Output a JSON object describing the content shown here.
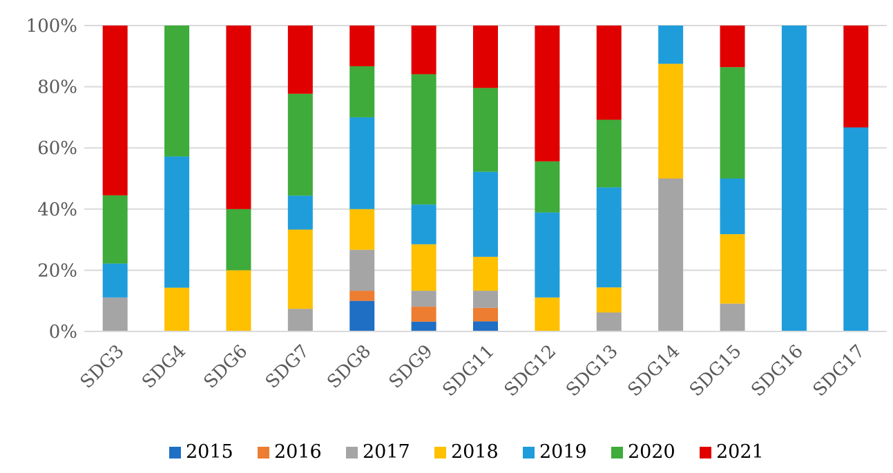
{
  "chart_data": {
    "type": "bar",
    "stacked": true,
    "percent": true,
    "title": "",
    "xlabel": "",
    "ylabel": "",
    "ylim": [
      0,
      100
    ],
    "y_ticks": [
      "0%",
      "20%",
      "40%",
      "60%",
      "80%",
      "100%"
    ],
    "y_tick_values": [
      0,
      20,
      40,
      60,
      80,
      100
    ],
    "grid": true,
    "legend_position": "bottom",
    "categories": [
      "SDG3",
      "SDG4",
      "SDG6",
      "SDG7",
      "SDG8",
      "SDG9",
      "SDG11",
      "SDG12",
      "SDG13",
      "SDG14",
      "SDG15",
      "SDG16",
      "SDG17"
    ],
    "series": [
      {
        "name": "2015",
        "color": "#1f6fc5",
        "values": [
          0,
          0,
          0,
          0,
          10,
          3.2,
          3.3,
          0,
          0,
          0,
          0,
          0,
          0
        ]
      },
      {
        "name": "2016",
        "color": "#ed7d31",
        "values": [
          0,
          0,
          0,
          0,
          3.3,
          4.9,
          4.4,
          0,
          0,
          0,
          0,
          0,
          0
        ]
      },
      {
        "name": "2017",
        "color": "#a5a5a5",
        "values": [
          11.1,
          0,
          0,
          7.4,
          13.4,
          5.2,
          5.6,
          0,
          6.2,
          50,
          9.1,
          0,
          0
        ]
      },
      {
        "name": "2018",
        "color": "#ffc000",
        "values": [
          0,
          14.3,
          20,
          25.9,
          13.3,
          15.2,
          11.1,
          11.1,
          8.2,
          37.5,
          22.7,
          0,
          0
        ]
      },
      {
        "name": "2019",
        "color": "#1f9ddb",
        "values": [
          11.1,
          42.9,
          0,
          11.1,
          30,
          13.0,
          27.8,
          27.8,
          32.7,
          12.5,
          18.2,
          100,
          66.7
        ]
      },
      {
        "name": "2020",
        "color": "#3eab3a",
        "values": [
          22.3,
          42.8,
          20,
          33.3,
          16.7,
          42.6,
          27.4,
          16.7,
          22.1,
          0,
          36.4,
          0,
          0
        ]
      },
      {
        "name": "2021",
        "color": "#e00000",
        "values": [
          55.5,
          0,
          60,
          22.3,
          13.3,
          15.9,
          20.4,
          44.4,
          30.8,
          0,
          13.6,
          0,
          33.3
        ]
      }
    ]
  }
}
